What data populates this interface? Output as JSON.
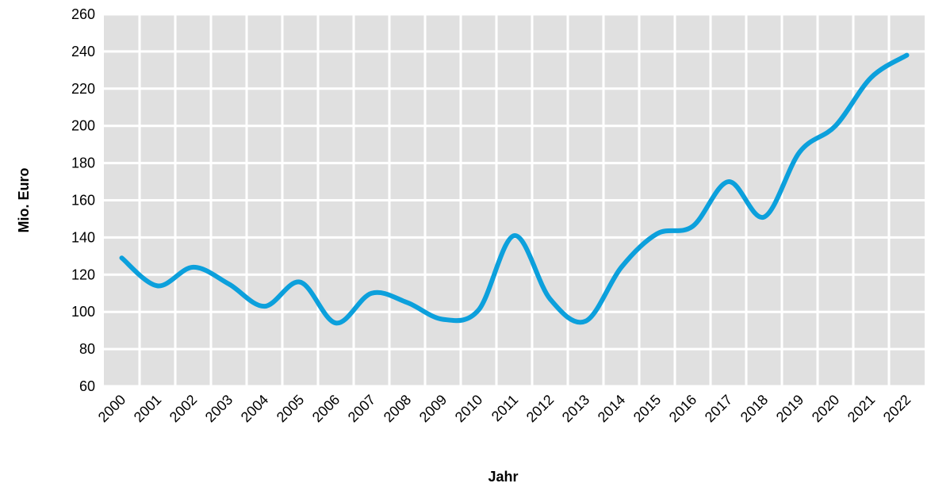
{
  "chart_data": {
    "type": "line",
    "title": "",
    "xlabel": "Jahr",
    "ylabel": "Mio. Euro",
    "ylim": [
      60,
      260
    ],
    "yticks": [
      "60",
      "80",
      "100",
      "120",
      "140",
      "160",
      "180",
      "200",
      "220",
      "240",
      "260"
    ],
    "categories": [
      "2000",
      "2001",
      "2002",
      "2003",
      "2004",
      "2005",
      "2006",
      "2007",
      "2008",
      "2009",
      "2010",
      "2011",
      "2012",
      "2013",
      "2014",
      "2015",
      "2016",
      "2017",
      "2018",
      "2019",
      "2020",
      "2021",
      "2022"
    ],
    "series": [
      {
        "values": [
          129,
          114,
          124,
          115,
          103,
          116,
          94,
          110,
          105,
          96,
          101,
          141,
          107,
          95,
          124,
          142,
          146,
          170,
          151,
          186,
          200,
          226,
          238
        ]
      }
    ],
    "grid": true,
    "line_color": "#0ca0dc",
    "plot_background": "#e0e0e0",
    "grid_color": "#ffffff"
  }
}
